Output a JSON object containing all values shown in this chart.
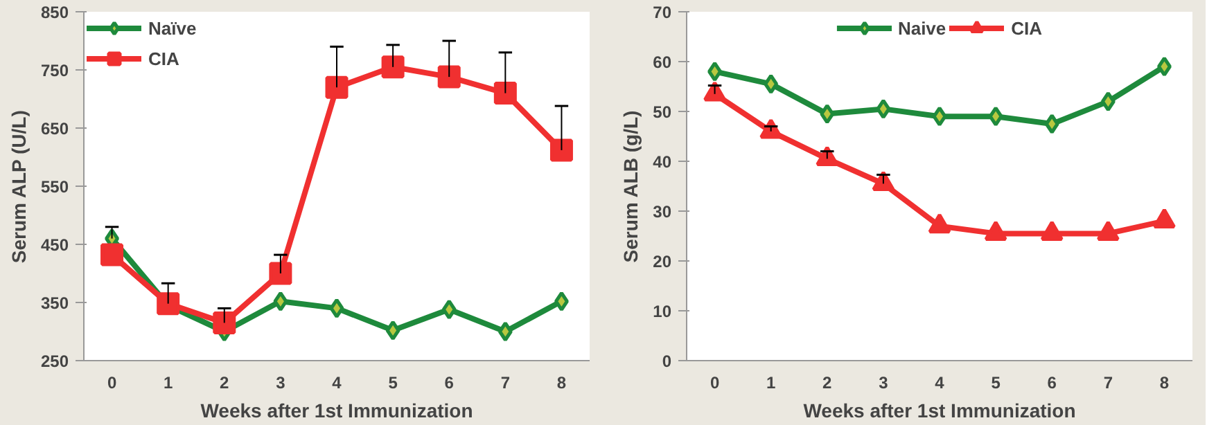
{
  "chart_data": [
    {
      "type": "line",
      "categories": [
        "0",
        "1",
        "2",
        "3",
        "4",
        "5",
        "6",
        "7",
        "8"
      ],
      "xlabel": "Weeks after 1st Immunization",
      "ylabel": "Serum ALP (U/L)",
      "ylim": [
        250,
        850
      ],
      "yticks": [
        250,
        350,
        450,
        550,
        650,
        750,
        850
      ],
      "grid": false,
      "legend": "top left",
      "series": [
        {
          "name": "Naïve",
          "color": "#1e8a3c",
          "marker": "diamond",
          "values": [
            460,
            345,
            300,
            352,
            340,
            302,
            338,
            300,
            352
          ],
          "errors": [
            [
              460,
              480
            ],
            null,
            null,
            null,
            null,
            null,
            null,
            null,
            null
          ]
        },
        {
          "name": "CIA",
          "color": "#f03030",
          "marker": "square",
          "values": [
            432,
            348,
            315,
            400,
            720,
            755,
            738,
            710,
            612
          ],
          "errors": [
            null,
            [
              348,
              383
            ],
            [
              315,
              340
            ],
            [
              400,
              432
            ],
            [
              720,
              790
            ],
            [
              755,
              793
            ],
            [
              738,
              800
            ],
            [
              710,
              780
            ],
            [
              612,
              688
            ]
          ]
        }
      ]
    },
    {
      "type": "line",
      "categories": [
        "0",
        "1",
        "2",
        "3",
        "4",
        "5",
        "6",
        "7",
        "8"
      ],
      "xlabel": "Weeks after 1st Immunization",
      "ylabel": "Serum ALB (g/L)",
      "ylim": [
        0,
        70
      ],
      "yticks": [
        0,
        10,
        20,
        30,
        40,
        50,
        60,
        70
      ],
      "grid": false,
      "legend": "top",
      "series": [
        {
          "name": "Naive",
          "color": "#1e8a3c",
          "marker": "diamond",
          "values": [
            58,
            55.5,
            49.5,
            50.5,
            49,
            49,
            47.5,
            52,
            59
          ]
        },
        {
          "name": "CIA",
          "color": "#f03030",
          "marker": "triangle",
          "values": [
            53.5,
            46,
            40.5,
            35.5,
            27,
            25.5,
            25.5,
            25.5,
            28
          ],
          "errors": [
            [
              53.5,
              55.2
            ],
            [
              46,
              47
            ],
            [
              40.5,
              42
            ],
            [
              35.5,
              37.3
            ],
            null,
            null,
            null,
            null,
            null
          ]
        }
      ]
    }
  ]
}
